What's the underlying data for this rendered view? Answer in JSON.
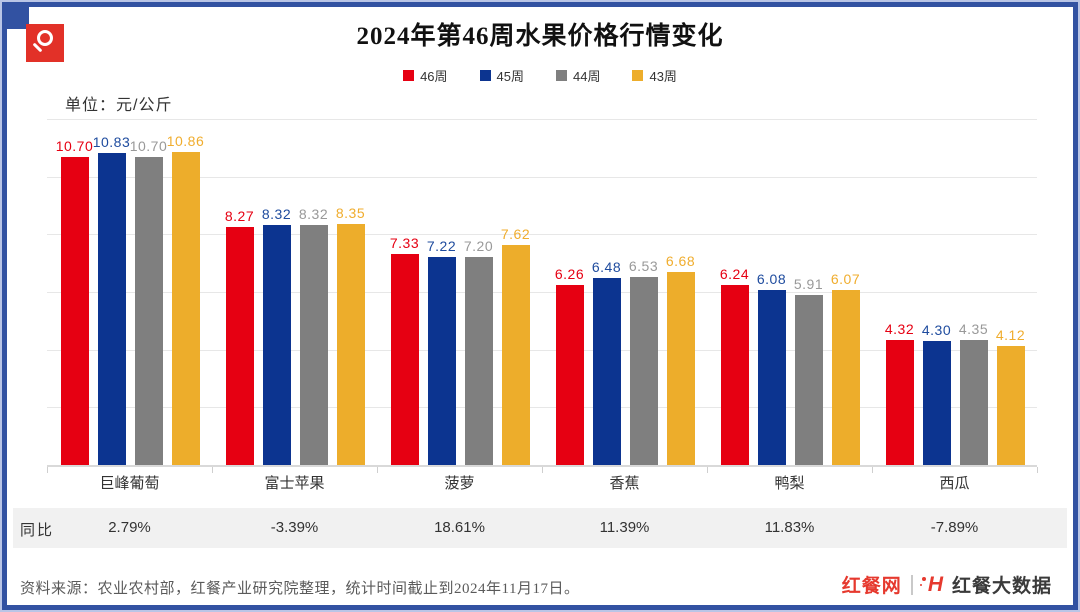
{
  "page": {
    "title": "2024年第46周水果价格行情变化",
    "unit_label": "单位：元/公斤",
    "footer_source": "资料来源：农业农村部，红餐产业研究院整理，统计时间截止到2024年11月17日。",
    "brand": {
      "site": "红餐网",
      "h_glyph": "H",
      "data_brand": "红餐大数据"
    }
  },
  "chart_data": {
    "type": "bar",
    "title": "2024年第46周水果价格行情变化",
    "unit": "元/公斤",
    "categories": [
      "巨峰葡萄",
      "富士苹果",
      "菠萝",
      "香蕉",
      "鸭梨",
      "西瓜"
    ],
    "series": [
      {
        "name": "46周",
        "color": "#e60012",
        "label_color": "#e60012",
        "values": [
          10.7,
          8.27,
          7.33,
          6.26,
          6.24,
          4.32
        ]
      },
      {
        "name": "45周",
        "color": "#0c3490",
        "label_color": "#1e4b9e",
        "values": [
          10.83,
          8.32,
          7.22,
          6.48,
          6.08,
          4.3
        ]
      },
      {
        "name": "44周",
        "color": "#7f7f7f",
        "label_color": "#999999",
        "values": [
          10.7,
          8.32,
          7.2,
          6.53,
          5.91,
          4.35
        ]
      },
      {
        "name": "43周",
        "color": "#edad2b",
        "label_color": "#f0ad2e",
        "values": [
          10.86,
          8.35,
          7.62,
          6.68,
          6.07,
          4.12
        ]
      }
    ],
    "ylim": [
      0,
      12
    ],
    "grid_step": 2,
    "grid_on": true,
    "legend_position": "top",
    "xlabel": "",
    "ylabel": "元/公斤",
    "yoy": {
      "label": "同比",
      "values": [
        "2.79%",
        "-3.39%",
        "18.61%",
        "11.39%",
        "11.83%",
        "-7.89%"
      ]
    }
  }
}
